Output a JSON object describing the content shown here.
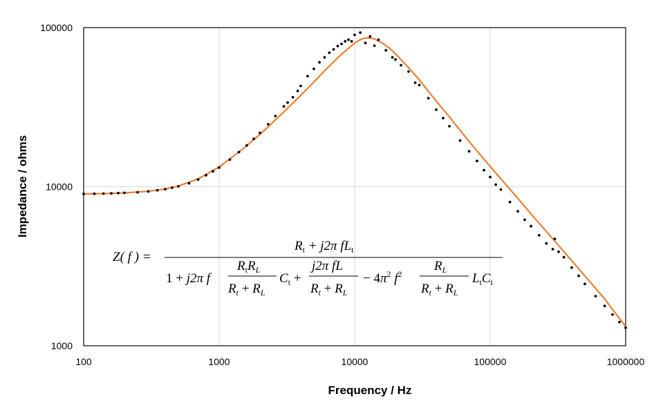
{
  "chart_data": {
    "type": "scatter",
    "title": "",
    "xlabel": "Frequency / Hz",
    "ylabel": "Impedance / ohms",
    "x_scale": "log",
    "y_scale": "log",
    "xlim": [
      100,
      1000000
    ],
    "ylim": [
      1000,
      100000
    ],
    "x_ticks": [
      "100",
      "1000",
      "10000",
      "100000",
      "1000000"
    ],
    "y_ticks": [
      "1000",
      "10000",
      "100000"
    ],
    "grid": true,
    "legend": "none",
    "colors": {
      "points": "#000000",
      "fit": "#ED7D31",
      "grid": "#D9D9D9"
    },
    "series": [
      {
        "kind": "points",
        "x": [
          100,
          120,
          140,
          160,
          180,
          200,
          250,
          300,
          350,
          400,
          450,
          500,
          600,
          700,
          800,
          900,
          1000,
          1200,
          1400,
          1600,
          1800,
          2000,
          2300,
          2600,
          3000,
          3200,
          3500,
          3800,
          4000,
          4500,
          5000,
          5500,
          6000,
          6500,
          7000,
          7500,
          8000,
          8500,
          9000,
          9500,
          10000,
          11000,
          12000,
          13000,
          14000,
          15000,
          17000,
          19000,
          20000,
          22000,
          25000,
          28000,
          30000,
          35000,
          40000,
          45000,
          50000,
          60000,
          70000,
          80000,
          90000,
          100000,
          110000,
          120000,
          140000,
          160000,
          180000,
          200000,
          230000,
          260000,
          290000,
          300000,
          320000,
          350000,
          400000,
          450000,
          500000,
          600000,
          700000,
          800000,
          900000,
          1000000
        ],
        "y": [
          9000,
          9020,
          9050,
          9080,
          9110,
          9150,
          9220,
          9330,
          9480,
          9650,
          9850,
          10050,
          10500,
          11100,
          11800,
          12500,
          13200,
          14800,
          16500,
          18200,
          20000,
          21800,
          24700,
          27800,
          32000,
          33800,
          36500,
          40000,
          43000,
          49500,
          55000,
          60500,
          65000,
          69500,
          73000,
          76500,
          79000,
          82000,
          84000,
          82000,
          90000,
          93000,
          80000,
          88000,
          77000,
          84000,
          72000,
          65000,
          63000,
          58000,
          53000,
          45000,
          43500,
          36000,
          30500,
          27000,
          24000,
          19500,
          16700,
          14500,
          12700,
          11500,
          10300,
          9600,
          8000,
          7000,
          6200,
          5650,
          4950,
          4400,
          4050,
          4700,
          3900,
          3600,
          3100,
          2750,
          2450,
          2050,
          1780,
          1570,
          1410,
          1300
        ]
      },
      {
        "kind": "fit-line",
        "x": [
          100,
          150,
          200,
          300,
          400,
          500,
          700,
          1000,
          1500,
          2000,
          3000,
          4000,
          5000,
          6000,
          7000,
          8000,
          9000,
          10000,
          11000,
          12000,
          13000,
          14000,
          16000,
          18000,
          20000,
          25000,
          30000,
          40000,
          50000,
          70000,
          100000,
          150000,
          200000,
          300000,
          500000,
          700000,
          1000000
        ],
        "y": [
          9000,
          9060,
          9140,
          9350,
          9680,
          10100,
          11200,
          13300,
          17300,
          21300,
          29500,
          37500,
          45500,
          53500,
          61000,
          68000,
          74000,
          80000,
          84000,
          86000,
          86000,
          85000,
          80000,
          74500,
          68500,
          56000,
          47000,
          34500,
          27500,
          19200,
          13400,
          9000,
          6750,
          4550,
          2750,
          1970,
          1320
        ]
      }
    ]
  },
  "equation": {
    "lhs": "Z( f ) =",
    "numerator": "Rt + j2π fLt",
    "denominator": "1 + j2π f RtRL/(Rt + RL) Ct + j2π fL/(Rt + RL) − 4π² f² RL/(Rt + RL) LtCt"
  }
}
